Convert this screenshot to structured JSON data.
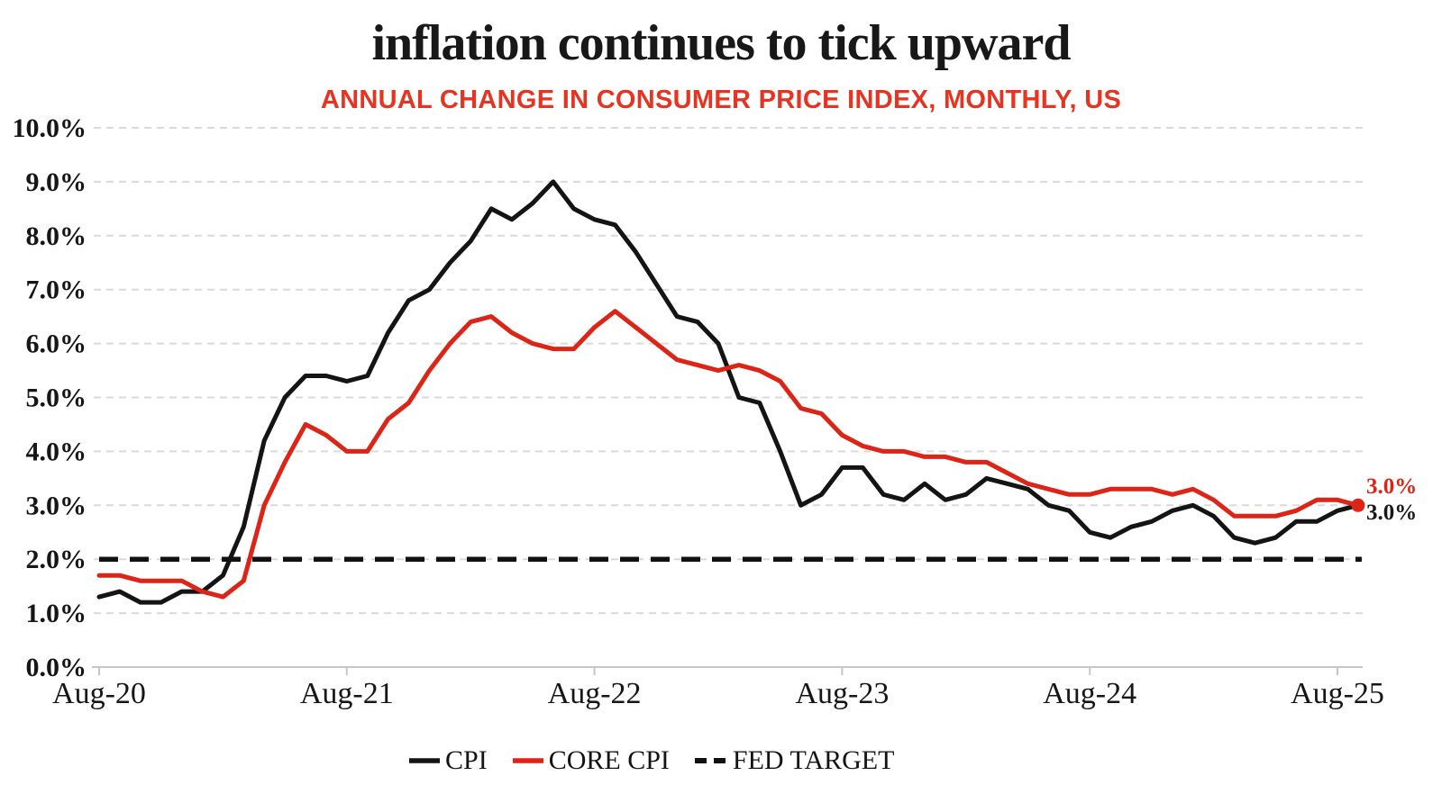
{
  "title": "inflation continues to tick upward",
  "subtitle": "ANNUAL CHANGE IN CONSUMER PRICE INDEX, MONTHLY, US",
  "colors": {
    "cpi_line": "#141414",
    "core_cpi_line": "#dc2516",
    "fed_target_line": "#111111",
    "subtitle_text": "#e63322",
    "core_end_label": "#dc2516",
    "cpi_end_label": "#181818",
    "gridline": "#dadada",
    "axis_line": "#c6c6c6",
    "tick_label": "#161616"
  },
  "end_labels": {
    "core_cpi": "3.0%",
    "cpi": "3.0%"
  },
  "legend": {
    "items": [
      {
        "label": "CPI",
        "style": "solid",
        "color_key": "cpi_line"
      },
      {
        "label": "CORE CPI",
        "style": "solid",
        "color_key": "core_cpi_line"
      },
      {
        "label": "FED TARGET",
        "style": "dashed",
        "color_key": "fed_target_line"
      }
    ]
  },
  "chart_data": {
    "type": "line",
    "title": "inflation continues to tick upward",
    "subtitle": "ANNUAL CHANGE IN CONSUMER PRICE INDEX, MONTHLY, US",
    "frequency": "monthly",
    "x_start": "Aug-2020",
    "x_end": "Sep-2025",
    "ylim": [
      0,
      10
    ],
    "grid": "horizontal-dashed",
    "legend_position": "bottom",
    "y_tick_labels": [
      "0.0%",
      "1.0%",
      "2.0%",
      "3.0%",
      "4.0%",
      "5.0%",
      "6.0%",
      "7.0%",
      "8.0%",
      "9.0%",
      "10.0%"
    ],
    "x_ticks": [
      {
        "label": "Aug-20",
        "month_index": 0
      },
      {
        "label": "Aug-21",
        "month_index": 12
      },
      {
        "label": "Aug-22",
        "month_index": 24
      },
      {
        "label": "Aug-23",
        "month_index": 36
      },
      {
        "label": "Aug-24",
        "month_index": 48
      },
      {
        "label": "Aug-25",
        "month_index": 60
      }
    ],
    "series": [
      {
        "name": "CPI",
        "type": "line",
        "color_key": "cpi_line",
        "end_value_label": "3.0%",
        "values": [
          1.3,
          1.4,
          1.2,
          1.2,
          1.4,
          1.4,
          1.7,
          2.6,
          4.2,
          5.0,
          5.4,
          5.4,
          5.3,
          5.4,
          6.2,
          6.8,
          7.0,
          7.5,
          7.9,
          8.5,
          8.3,
          8.6,
          9.0,
          8.5,
          8.3,
          8.2,
          7.7,
          7.1,
          6.5,
          6.4,
          6.0,
          5.0,
          4.9,
          4.0,
          3.0,
          3.2,
          3.7,
          3.7,
          3.2,
          3.1,
          3.4,
          3.1,
          3.2,
          3.5,
          3.4,
          3.3,
          3.0,
          2.9,
          2.5,
          2.4,
          2.6,
          2.7,
          2.9,
          3.0,
          2.8,
          2.4,
          2.3,
          2.4,
          2.7,
          2.7,
          2.9,
          3.0
        ]
      },
      {
        "name": "CORE CPI",
        "type": "line",
        "color_key": "core_cpi_line",
        "end_marker": true,
        "end_value_label": "3.0%",
        "values": [
          1.7,
          1.7,
          1.6,
          1.6,
          1.6,
          1.4,
          1.3,
          1.6,
          3.0,
          3.8,
          4.5,
          4.3,
          4.0,
          4.0,
          4.6,
          4.9,
          5.5,
          6.0,
          6.4,
          6.5,
          6.2,
          6.0,
          5.9,
          5.9,
          6.3,
          6.6,
          6.3,
          6.0,
          5.7,
          5.6,
          5.5,
          5.6,
          5.5,
          5.3,
          4.8,
          4.7,
          4.3,
          4.1,
          4.0,
          4.0,
          3.9,
          3.9,
          3.8,
          3.8,
          3.6,
          3.4,
          3.3,
          3.2,
          3.2,
          3.3,
          3.3,
          3.3,
          3.2,
          3.3,
          3.1,
          2.8,
          2.8,
          2.8,
          2.9,
          3.1,
          3.1,
          3.0
        ]
      },
      {
        "name": "FED TARGET",
        "type": "constant-line",
        "style": "dashed",
        "color_key": "fed_target_line",
        "value": 2.0
      }
    ]
  }
}
